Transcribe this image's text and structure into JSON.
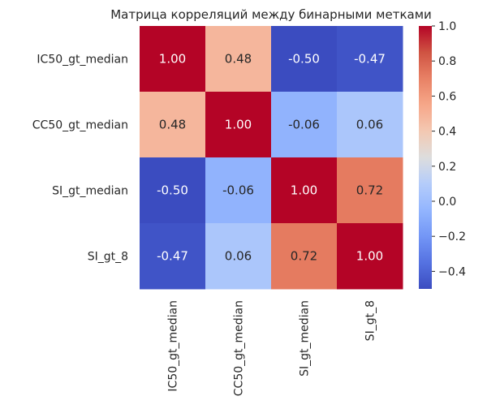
{
  "chart_data": {
    "type": "heatmap",
    "title": "Матрица корреляций между бинарными метками",
    "rows": [
      "IC50_gt_median",
      "CC50_gt_median",
      "SI_gt_median",
      "SI_gt_8"
    ],
    "cols": [
      "IC50_gt_median",
      "CC50_gt_median",
      "SI_gt_median",
      "SI_gt_8"
    ],
    "values": [
      [
        1.0,
        0.48,
        -0.5,
        -0.47
      ],
      [
        0.48,
        1.0,
        -0.06,
        0.06
      ],
      [
        -0.5,
        -0.06,
        1.0,
        0.72
      ],
      [
        -0.47,
        0.06,
        0.72,
        1.0
      ]
    ],
    "value_labels": [
      [
        "1.00",
        "0.48",
        "-0.50",
        "-0.47"
      ],
      [
        "0.48",
        "1.00",
        "-0.06",
        "0.06"
      ],
      [
        "-0.50",
        "-0.06",
        "1.00",
        "0.72"
      ],
      [
        "-0.47",
        "0.06",
        "0.72",
        "1.00"
      ]
    ],
    "colormap": "coolwarm",
    "color_range": [
      -0.5,
      1.0
    ],
    "colorbar": {
      "ticks": [
        1.0,
        0.8,
        0.6,
        0.4,
        0.2,
        0.0,
        -0.2,
        -0.4
      ],
      "tick_labels": [
        "1.0",
        "0.8",
        "0.6",
        "0.4",
        "0.2",
        "0.0",
        "−0.2",
        "−0.4"
      ],
      "placement": "right"
    },
    "xtick_rotation": "vertical",
    "grid": false
  }
}
